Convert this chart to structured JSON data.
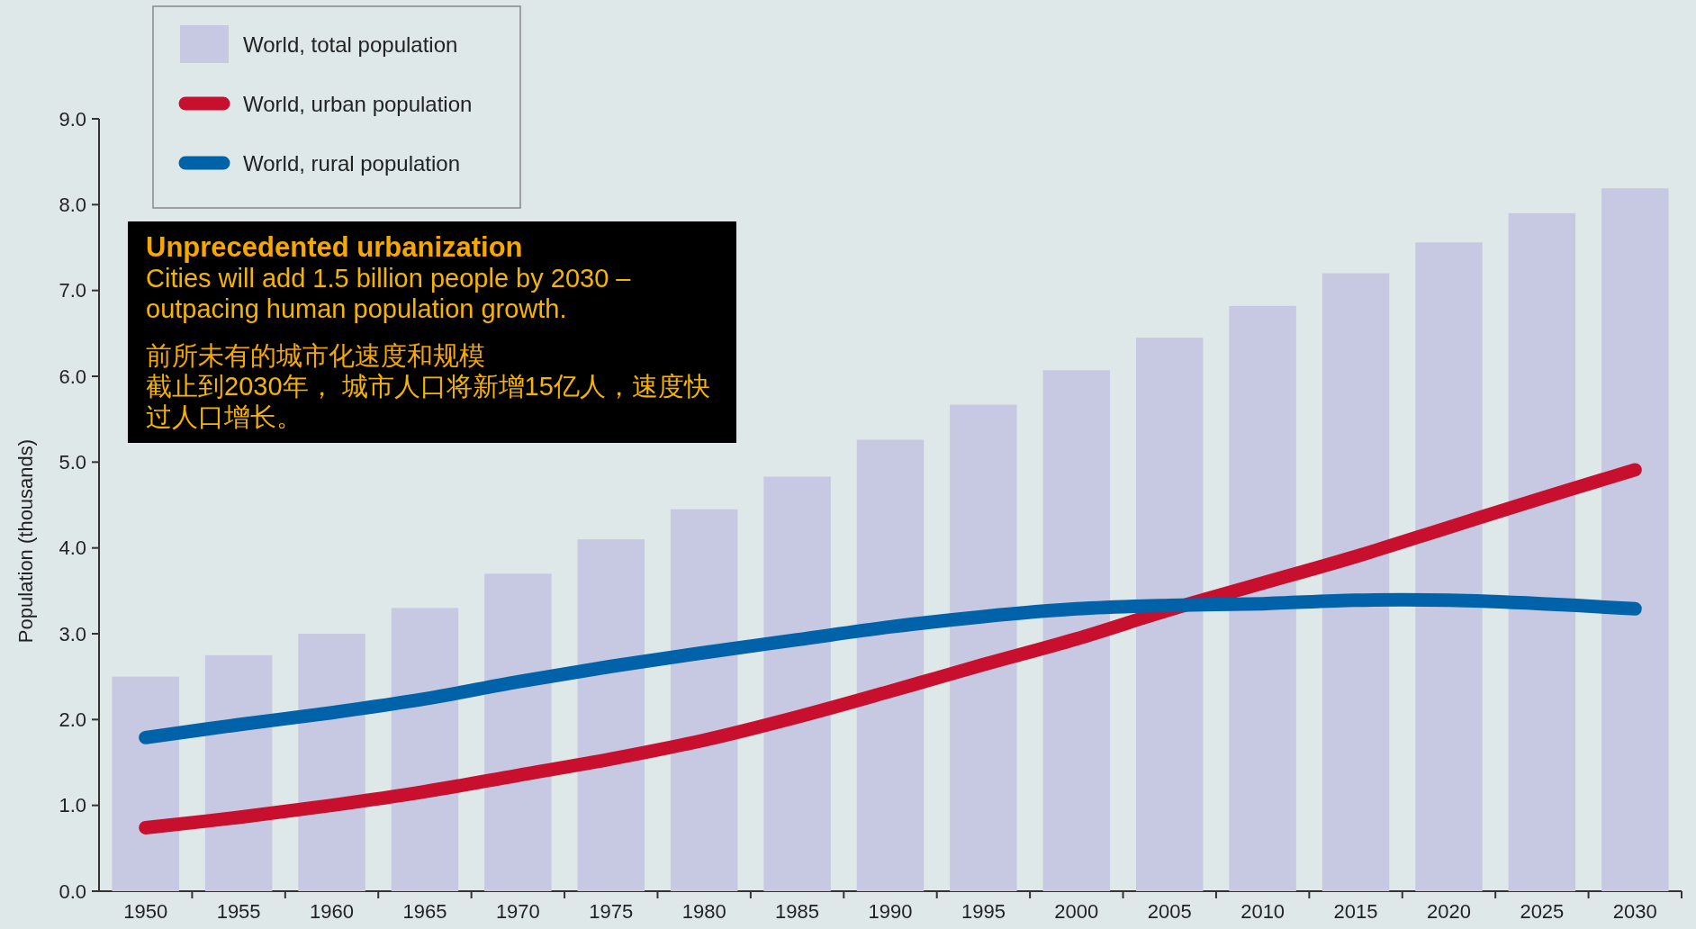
{
  "chart_data": {
    "type": "bar",
    "ylabel": "Population (thousands)",
    "categories": [
      "1950",
      "1955",
      "1960",
      "1965",
      "1970",
      "1975",
      "1980",
      "1985",
      "1990",
      "1995",
      "2000",
      "2005",
      "2010",
      "2015",
      "2020",
      "2025",
      "2030"
    ],
    "series": [
      {
        "name": "World, total population",
        "color": "#c6c9e1",
        "values": [
          2.5,
          2.75,
          3.0,
          3.3,
          3.7,
          4.1,
          4.45,
          4.83,
          5.26,
          5.67,
          6.07,
          6.45,
          6.82,
          7.2,
          7.56,
          7.9,
          8.19
        ]
      },
      {
        "name": "World, urban population",
        "type": "line",
        "color": "#c8102e",
        "values": [
          0.74,
          0.86,
          1.0,
          1.16,
          1.35,
          1.54,
          1.76,
          2.03,
          2.33,
          2.64,
          2.94,
          3.28,
          3.59,
          3.9,
          4.24,
          4.58,
          4.91
        ]
      },
      {
        "name": "World, rural population",
        "type": "line",
        "color": "#0062a8",
        "values": [
          1.79,
          1.94,
          2.08,
          2.24,
          2.44,
          2.62,
          2.78,
          2.93,
          3.08,
          3.2,
          3.29,
          3.33,
          3.35,
          3.39,
          3.39,
          3.35,
          3.29
        ]
      }
    ],
    "ylim": [
      0,
      9
    ],
    "yticks": [
      {
        "value": 0,
        "label": "0.0"
      },
      {
        "value": 1,
        "label": "1.0"
      },
      {
        "value": 2,
        "label": "2.0"
      },
      {
        "value": 3,
        "label": "3.0"
      },
      {
        "value": 4,
        "label": "4.0"
      },
      {
        "value": 5,
        "label": "5.0"
      },
      {
        "value": 6,
        "label": "6.0"
      },
      {
        "value": 7,
        "label": "7.0"
      },
      {
        "value": 8,
        "label": "8.0"
      },
      {
        "value": 9,
        "label": "9.0"
      }
    ],
    "legend": "top left",
    "annotations": [
      "Unprecedented urbanization",
      "Cities will add 1.5 billion people by 2030 – outpacing human population growth.",
      "前所未有的城市化速度和规模",
      "截止到2030年， 城市人口将新增15亿人，速度快过人口增长。"
    ]
  }
}
